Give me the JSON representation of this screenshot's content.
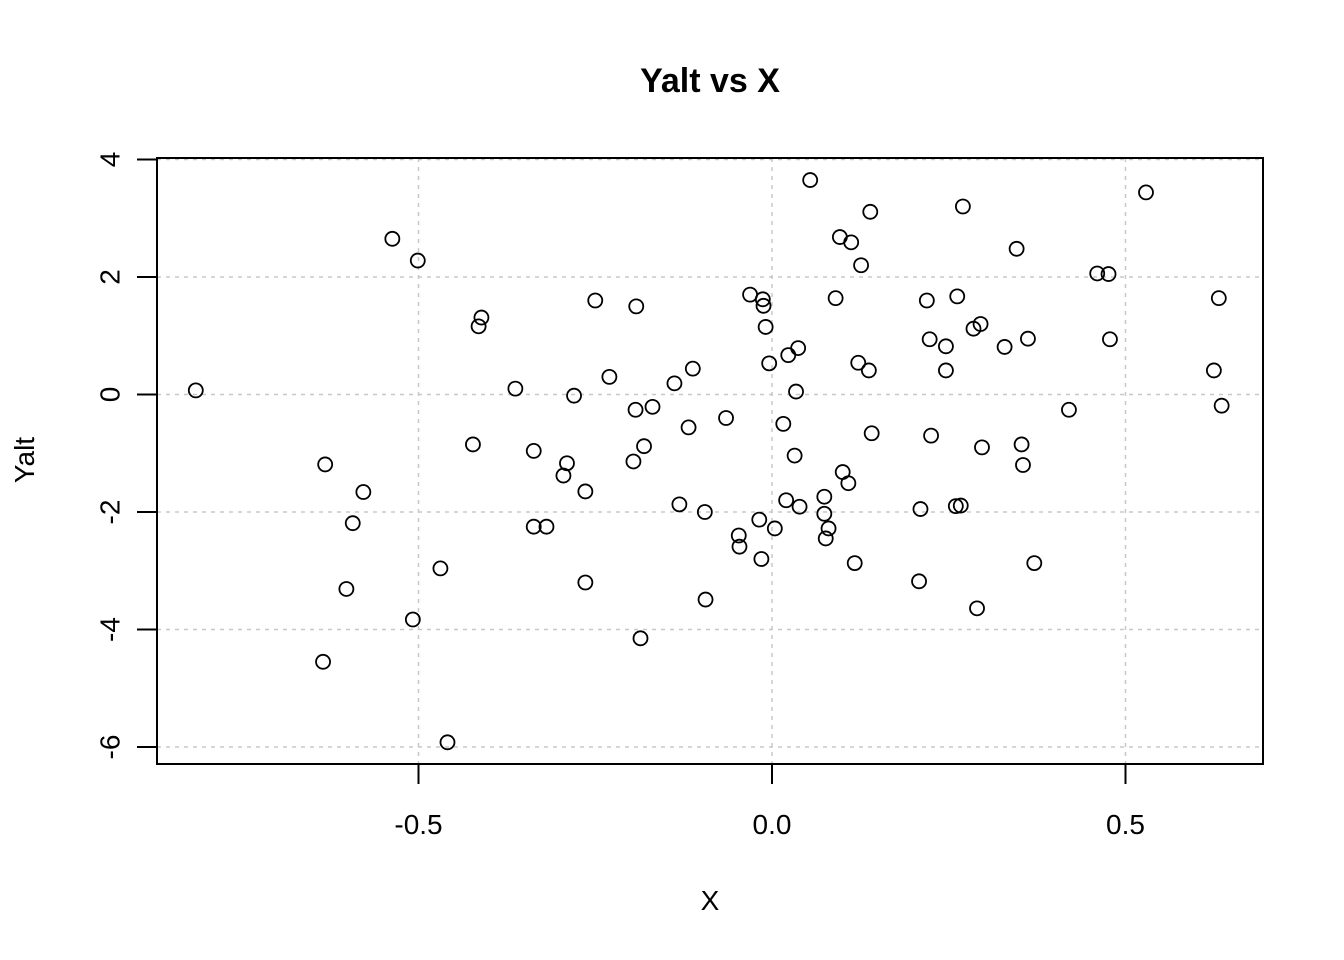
{
  "chart_data": {
    "type": "scatter",
    "title": "Yalt vs X",
    "xlabel": "X",
    "ylabel": "Yalt",
    "xlim": [
      -0.9,
      0.7
    ],
    "ylim": [
      -6.3,
      4.0
    ],
    "xticks": [
      -0.5,
      0.0,
      0.5
    ],
    "xtick_labels": [
      "-0.5",
      "0.0",
      "0.5"
    ],
    "yticks": [
      -6,
      -4,
      -2,
      0,
      2,
      4
    ],
    "ytick_labels": [
      "-6",
      "-4",
      "-2",
      "0",
      "2",
      "4"
    ],
    "grid": true,
    "grid_color": "#c8c8c8",
    "marker": "open-circle",
    "marker_color": "#000000",
    "points": [
      [
        -0.815,
        0.07
      ],
      [
        -0.635,
        -4.55
      ],
      [
        -0.632,
        -1.19
      ],
      [
        -0.602,
        -3.31
      ],
      [
        -0.593,
        -2.19
      ],
      [
        -0.578,
        -1.66
      ],
      [
        -0.537,
        2.65
      ],
      [
        -0.508,
        -3.83
      ],
      [
        -0.501,
        2.28
      ],
      [
        -0.469,
        -2.96
      ],
      [
        -0.459,
        -5.92
      ],
      [
        -0.423,
        -0.85
      ],
      [
        -0.415,
        1.16
      ],
      [
        -0.411,
        1.31
      ],
      [
        -0.363,
        0.1
      ],
      [
        -0.337,
        -0.96
      ],
      [
        -0.337,
        -2.25
      ],
      [
        -0.319,
        -2.25
      ],
      [
        -0.295,
        -1.38
      ],
      [
        -0.29,
        -1.17
      ],
      [
        -0.28,
        -0.02
      ],
      [
        -0.264,
        -1.65
      ],
      [
        -0.264,
        -3.2
      ],
      [
        -0.25,
        1.6
      ],
      [
        -0.23,
        0.3
      ],
      [
        -0.196,
        -1.14
      ],
      [
        -0.193,
        -0.26
      ],
      [
        -0.192,
        1.5
      ],
      [
        -0.186,
        -4.15
      ],
      [
        -0.181,
        -0.88
      ],
      [
        -0.169,
        -0.21
      ],
      [
        -0.138,
        0.19
      ],
      [
        -0.131,
        -1.87
      ],
      [
        -0.118,
        -0.56
      ],
      [
        -0.112,
        0.44
      ],
      [
        -0.095,
        -2.0
      ],
      [
        -0.094,
        -3.49
      ],
      [
        -0.065,
        -0.4
      ],
      [
        -0.047,
        -2.4
      ],
      [
        -0.046,
        -2.59
      ],
      [
        -0.031,
        1.7
      ],
      [
        -0.018,
        -2.13
      ],
      [
        -0.015,
        -2.8
      ],
      [
        -0.013,
        1.62
      ],
      [
        -0.012,
        1.51
      ],
      [
        -0.009,
        1.15
      ],
      [
        -0.004,
        0.53
      ],
      [
        0.004,
        -2.28
      ],
      [
        0.016,
        -0.5
      ],
      [
        0.02,
        -1.8
      ],
      [
        0.023,
        0.67
      ],
      [
        0.032,
        -1.04
      ],
      [
        0.034,
        0.05
      ],
      [
        0.037,
        0.79
      ],
      [
        0.039,
        -1.91
      ],
      [
        0.054,
        3.65
      ],
      [
        0.074,
        -1.74
      ],
      [
        0.074,
        -2.03
      ],
      [
        0.076,
        -2.45
      ],
      [
        0.08,
        -2.28
      ],
      [
        0.09,
        1.64
      ],
      [
        0.096,
        2.68
      ],
      [
        0.1,
        -1.32
      ],
      [
        0.108,
        -1.51
      ],
      [
        0.112,
        2.59
      ],
      [
        0.117,
        -2.87
      ],
      [
        0.122,
        0.54
      ],
      [
        0.126,
        2.2
      ],
      [
        0.137,
        0.41
      ],
      [
        0.139,
        3.11
      ],
      [
        0.141,
        -0.66
      ],
      [
        0.208,
        -3.18
      ],
      [
        0.21,
        -1.95
      ],
      [
        0.219,
        1.6
      ],
      [
        0.223,
        0.94
      ],
      [
        0.225,
        -0.7
      ],
      [
        0.246,
        0.82
      ],
      [
        0.246,
        0.41
      ],
      [
        0.26,
        -1.9
      ],
      [
        0.262,
        1.67
      ],
      [
        0.267,
        -1.89
      ],
      [
        0.27,
        3.2
      ],
      [
        0.285,
        1.12
      ],
      [
        0.29,
        -3.64
      ],
      [
        0.295,
        1.2
      ],
      [
        0.297,
        -0.9
      ],
      [
        0.329,
        0.81
      ],
      [
        0.346,
        2.48
      ],
      [
        0.353,
        -0.85
      ],
      [
        0.355,
        -1.2
      ],
      [
        0.362,
        0.95
      ],
      [
        0.371,
        -2.87
      ],
      [
        0.42,
        -0.26
      ],
      [
        0.46,
        2.06
      ],
      [
        0.476,
        2.05
      ],
      [
        0.478,
        0.94
      ],
      [
        0.529,
        3.44
      ],
      [
        0.625,
        0.41
      ],
      [
        0.632,
        1.64
      ],
      [
        0.636,
        -0.19
      ]
    ]
  }
}
